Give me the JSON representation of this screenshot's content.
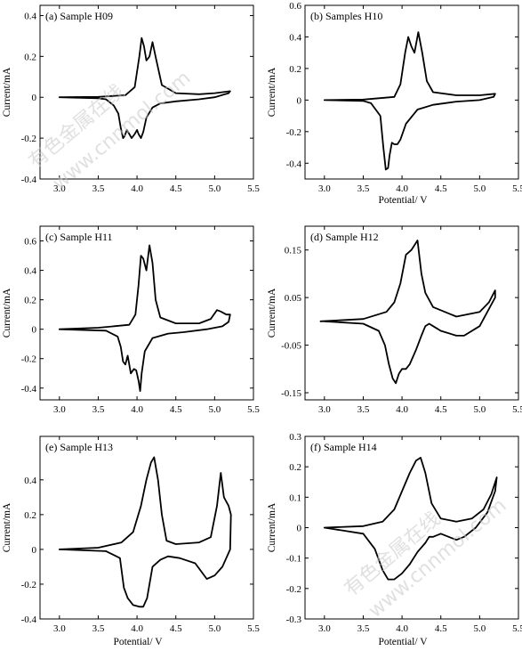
{
  "watermark": {
    "line1": "有色金属在线",
    "line2": "www.cnnmol.com"
  },
  "chart_data": [
    {
      "type": "line",
      "title": "(a)  Sample H09",
      "xlabel": "",
      "ylabel": "Current/mA",
      "xlim": [
        2.75,
        5.5
      ],
      "ylim": [
        -0.4,
        0.45
      ],
      "xticks": [
        3.0,
        3.5,
        4.0,
        4.5,
        5.0,
        5.5
      ],
      "yticks": [
        -0.4,
        -0.2,
        0,
        0.2,
        0.4
      ],
      "ytick_labels": [
        "-0.4",
        "-0.2",
        "0",
        "0.2",
        "0.4"
      ],
      "series": [
        {
          "x": [
            3.0,
            3.5,
            3.85,
            3.97,
            4.03,
            4.06,
            4.09,
            4.12,
            4.16,
            4.2,
            4.25,
            4.32,
            4.5,
            4.8,
            5.0,
            5.2,
            5.18,
            5.0,
            4.8,
            4.5,
            4.3,
            4.2,
            4.12,
            4.08,
            4.05,
            4.02,
            4.0,
            3.97,
            3.93,
            3.9,
            3.87,
            3.84,
            3.82,
            3.79,
            3.76,
            3.7,
            3.6,
            3.5,
            3.0
          ],
          "y": [
            0.0,
            0.002,
            0.01,
            0.05,
            0.2,
            0.29,
            0.25,
            0.18,
            0.2,
            0.27,
            0.18,
            0.06,
            0.02,
            0.015,
            0.02,
            0.03,
            0.02,
            0.0,
            -0.01,
            -0.02,
            -0.03,
            -0.05,
            -0.1,
            -0.17,
            -0.2,
            -0.18,
            -0.16,
            -0.18,
            -0.2,
            -0.18,
            -0.16,
            -0.19,
            -0.2,
            -0.15,
            -0.08,
            -0.04,
            -0.01,
            -0.005,
            0.0
          ]
        }
      ]
    },
    {
      "type": "line",
      "title": "(b) Samples H10",
      "xlabel": "Potential/ V",
      "ylabel": "Current/mA",
      "xlim": [
        2.75,
        5.5
      ],
      "ylim": [
        -0.5,
        0.6
      ],
      "xticks": [
        3.0,
        3.5,
        4.0,
        4.5,
        5.0,
        5.5
      ],
      "yticks": [
        -0.4,
        -0.2,
        0,
        0.2,
        0.4,
        0.6
      ],
      "ytick_labels": [
        "-0.4",
        "-0.2",
        "0",
        "0.2",
        "0.4",
        "0.6"
      ],
      "series": [
        {
          "x": [
            3.0,
            3.5,
            3.9,
            3.98,
            4.04,
            4.08,
            4.12,
            4.16,
            4.21,
            4.26,
            4.32,
            4.4,
            4.7,
            5.0,
            5.2,
            5.18,
            5.0,
            4.7,
            4.4,
            4.2,
            4.05,
            3.98,
            3.94,
            3.9,
            3.87,
            3.84,
            3.82,
            3.79,
            3.76,
            3.72,
            3.6,
            3.5,
            3.0
          ],
          "y": [
            0.0,
            0.003,
            0.02,
            0.1,
            0.3,
            0.4,
            0.34,
            0.3,
            0.43,
            0.3,
            0.12,
            0.05,
            0.03,
            0.03,
            0.04,
            0.02,
            0.0,
            -0.01,
            -0.03,
            -0.06,
            -0.15,
            -0.25,
            -0.28,
            -0.28,
            -0.27,
            -0.35,
            -0.43,
            -0.44,
            -0.3,
            -0.1,
            -0.02,
            -0.005,
            0.0
          ]
        }
      ]
    },
    {
      "type": "line",
      "title": "(c)  Sample H11",
      "xlabel": "",
      "ylabel": "Current/mA",
      "xlim": [
        2.75,
        5.5
      ],
      "ylim": [
        -0.48,
        0.7
      ],
      "xticks": [
        3.0,
        3.5,
        4.0,
        4.5,
        5.0,
        5.5
      ],
      "yticks": [
        -0.4,
        -0.2,
        0,
        0.2,
        0.4,
        0.6
      ],
      "ytick_labels": [
        "-0.4",
        "-0.2",
        "0",
        "0.2",
        "0.4",
        "0.6"
      ],
      "series": [
        {
          "x": [
            3.0,
            3.5,
            3.9,
            3.98,
            4.02,
            4.05,
            4.08,
            4.12,
            4.16,
            4.2,
            4.24,
            4.3,
            4.5,
            4.8,
            4.95,
            5.03,
            5.08,
            5.15,
            5.2,
            5.18,
            5.1,
            4.9,
            4.6,
            4.4,
            4.2,
            4.1,
            4.06,
            4.04,
            4.02,
            3.99,
            3.96,
            3.92,
            3.88,
            3.85,
            3.82,
            3.79,
            3.75,
            3.6,
            3.0
          ],
          "y": [
            0.0,
            0.01,
            0.03,
            0.1,
            0.3,
            0.5,
            0.48,
            0.4,
            0.57,
            0.45,
            0.2,
            0.08,
            0.04,
            0.04,
            0.07,
            0.13,
            0.12,
            0.1,
            0.1,
            0.05,
            0.02,
            0.0,
            -0.02,
            -0.03,
            -0.06,
            -0.15,
            -0.3,
            -0.42,
            -0.35,
            -0.28,
            -0.27,
            -0.3,
            -0.18,
            -0.24,
            -0.22,
            -0.12,
            -0.05,
            -0.01,
            0.0
          ]
        }
      ]
    },
    {
      "type": "line",
      "title": "(d)  Sample H12",
      "xlabel": "",
      "ylabel": "Current/mA",
      "xlim": [
        2.75,
        5.5
      ],
      "ylim": [
        -0.165,
        0.2
      ],
      "xticks": [
        3.0,
        3.5,
        4.0,
        4.5,
        5.0,
        5.5
      ],
      "yticks": [
        -0.15,
        -0.05,
        0.05,
        0.15
      ],
      "ytick_labels": [
        "-0.15",
        "-0.05",
        "0.05",
        "0.15"
      ],
      "series": [
        {
          "x": [
            2.95,
            3.5,
            3.8,
            3.9,
            3.98,
            4.05,
            4.12,
            4.2,
            4.25,
            4.3,
            4.4,
            4.7,
            5.0,
            5.12,
            5.2,
            5.2,
            5.0,
            4.8,
            4.7,
            4.5,
            4.4,
            4.35,
            4.3,
            4.25,
            4.18,
            4.1,
            4.05,
            4.0,
            3.96,
            3.92,
            3.88,
            3.83,
            3.78,
            3.7,
            3.5,
            3.0
          ],
          "y": [
            0.0,
            0.005,
            0.02,
            0.04,
            0.08,
            0.14,
            0.15,
            0.17,
            0.1,
            0.06,
            0.03,
            0.01,
            0.02,
            0.04,
            0.065,
            0.05,
            -0.01,
            -0.03,
            -0.03,
            -0.02,
            -0.01,
            -0.005,
            -0.01,
            -0.03,
            -0.06,
            -0.09,
            -0.1,
            -0.1,
            -0.11,
            -0.13,
            -0.12,
            -0.09,
            -0.05,
            -0.02,
            -0.005,
            0.0
          ]
        }
      ]
    },
    {
      "type": "line",
      "title": "(e)  Sample H13",
      "xlabel": "Potential/ V",
      "ylabel": "Current/mA",
      "xlim": [
        2.75,
        5.5
      ],
      "ylim": [
        -0.4,
        0.65
      ],
      "xticks": [
        3.0,
        3.5,
        4.0,
        4.5,
        5.0,
        5.5
      ],
      "yticks": [
        -0.4,
        -0.2,
        0,
        0.2,
        0.4
      ],
      "ytick_labels": [
        "-0.4",
        "-0.2",
        "0",
        "0.2",
        "0.4"
      ],
      "series": [
        {
          "x": [
            3.0,
            3.5,
            3.8,
            3.95,
            4.05,
            4.12,
            4.18,
            4.22,
            4.27,
            4.32,
            4.38,
            4.5,
            4.8,
            4.95,
            5.03,
            5.08,
            5.12,
            5.18,
            5.21,
            5.2,
            5.1,
            5.0,
            4.9,
            4.75,
            4.55,
            4.4,
            4.3,
            4.2,
            4.13,
            4.08,
            4.03,
            3.95,
            3.88,
            3.83,
            3.78,
            3.6,
            3.0
          ],
          "y": [
            0.0,
            0.01,
            0.04,
            0.1,
            0.25,
            0.4,
            0.5,
            0.53,
            0.4,
            0.2,
            0.05,
            0.03,
            0.04,
            0.07,
            0.25,
            0.44,
            0.3,
            0.25,
            0.2,
            0.0,
            -0.1,
            -0.15,
            -0.17,
            -0.08,
            -0.05,
            -0.04,
            -0.06,
            -0.1,
            -0.28,
            -0.33,
            -0.33,
            -0.32,
            -0.28,
            -0.22,
            -0.05,
            -0.01,
            0.0
          ]
        }
      ]
    },
    {
      "type": "line",
      "title": "(f)  Sample H14",
      "xlabel": "Potential/ V",
      "ylabel": "Current/mA",
      "xlim": [
        2.75,
        5.5
      ],
      "ylim": [
        -0.3,
        0.3
      ],
      "xticks": [
        3.0,
        3.5,
        4.0,
        4.5,
        5.0,
        5.5
      ],
      "yticks": [
        -0.3,
        -0.2,
        -0.1,
        0,
        0.1,
        0.2,
        0.3
      ],
      "ytick_labels": [
        "-0.3",
        "-0.2",
        "-0.1",
        "0",
        "0.1",
        "0.2",
        "0.3"
      ],
      "series": [
        {
          "x": [
            3.0,
            3.5,
            3.75,
            3.9,
            4.0,
            4.1,
            4.18,
            4.24,
            4.3,
            4.38,
            4.5,
            4.7,
            4.9,
            5.05,
            5.15,
            5.22,
            5.2,
            5.1,
            4.95,
            4.8,
            4.7,
            4.6,
            4.5,
            4.4,
            4.35,
            4.3,
            4.2,
            4.1,
            4.0,
            3.9,
            3.82,
            3.75,
            3.65,
            3.5,
            3.0
          ],
          "y": [
            0.0,
            0.005,
            0.02,
            0.06,
            0.12,
            0.18,
            0.22,
            0.23,
            0.18,
            0.08,
            0.03,
            0.02,
            0.03,
            0.06,
            0.11,
            0.165,
            0.12,
            0.05,
            0.0,
            -0.03,
            -0.04,
            -0.03,
            -0.02,
            -0.03,
            -0.03,
            -0.05,
            -0.08,
            -0.12,
            -0.15,
            -0.17,
            -0.17,
            -0.14,
            -0.07,
            -0.02,
            0.0
          ]
        }
      ]
    }
  ]
}
